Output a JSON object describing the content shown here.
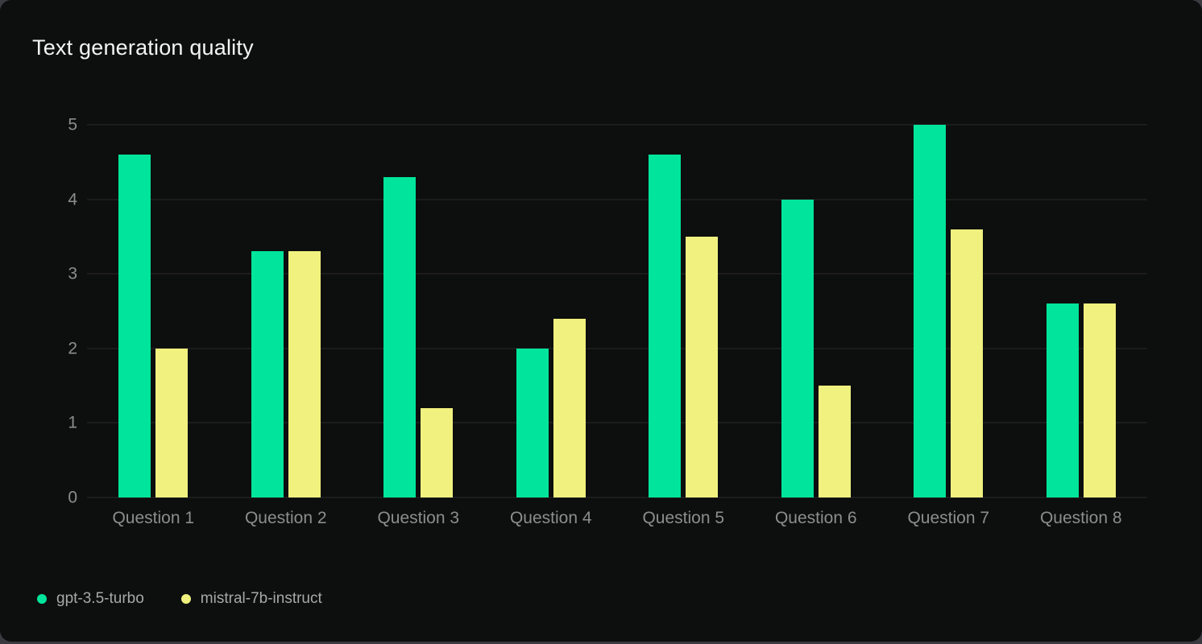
{
  "theme": {
    "page-bg": "#3a3a40",
    "card-bg": "#0d0e0e",
    "title-color": "#f4f4f4",
    "axis-color": "#8d8d8d",
    "grid-color": "#2a2a2b",
    "legend-color": "#a8a8a8"
  },
  "chart_data": {
    "type": "bar",
    "title": "Text generation quality",
    "categories": [
      "Question 1",
      "Question 2",
      "Question 3",
      "Question 4",
      "Question 5",
      "Question 6",
      "Question 7",
      "Question 8"
    ],
    "series": [
      {
        "name": "gpt-3.5-turbo",
        "color": "#00e59b",
        "values": [
          4.6,
          3.3,
          4.3,
          2.0,
          4.6,
          4.0,
          5.0,
          2.6
        ]
      },
      {
        "name": "mistral-7b-instruct",
        "color": "#f0f17e",
        "values": [
          2.0,
          3.3,
          1.2,
          2.4,
          3.5,
          1.5,
          3.6,
          2.6
        ]
      }
    ],
    "xlabel": "",
    "ylabel": "",
    "ylim": [
      0,
      5
    ],
    "yticks": [
      0,
      1,
      2,
      3,
      4,
      5
    ],
    "grid": "horizontal",
    "legend_position": "bottom-left"
  }
}
